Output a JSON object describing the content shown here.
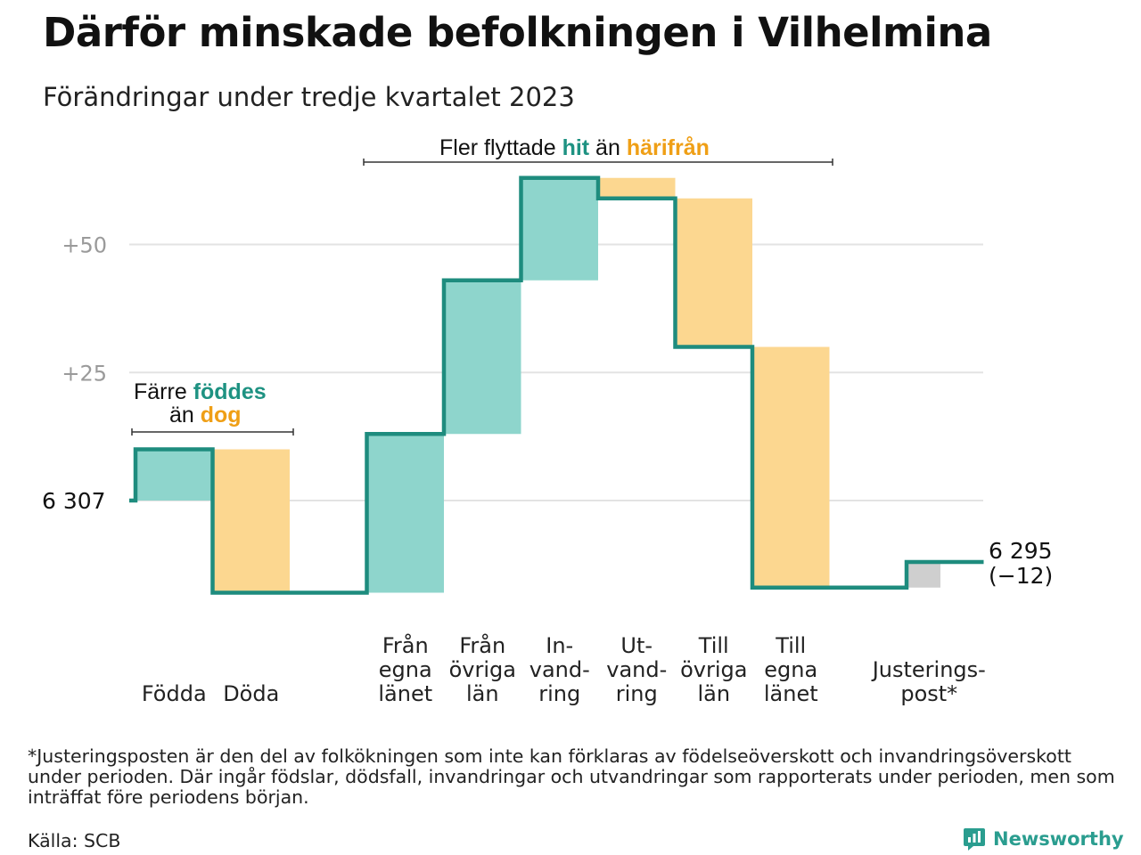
{
  "title": "Därför minskade befolkningen i Vilhelmina",
  "subtitle": "Förändringar under tredje kvartalet 2023",
  "chart_data": {
    "type": "waterfall",
    "start_value": 6307,
    "start_label": "6  307",
    "end_value": 6295,
    "end_label": "6 295",
    "end_change_label": "(−12)",
    "ytick_labels": [
      "+50",
      "+25"
    ],
    "ytick_values": [
      50,
      25
    ],
    "ylim": [
      -18,
      63
    ],
    "grid": true,
    "steps": [
      {
        "label": [
          "Födda"
        ],
        "value": 10,
        "type": "increase"
      },
      {
        "label": [
          "Döda"
        ],
        "value": -28,
        "type": "decrease"
      },
      {
        "label": [
          "Från",
          "egna",
          "länet"
        ],
        "value": 31,
        "type": "increase"
      },
      {
        "label": [
          "Från",
          "övriga",
          "län"
        ],
        "value": 30,
        "type": "increase"
      },
      {
        "label": [
          "In-",
          "vand-",
          "ring"
        ],
        "value": 20,
        "type": "increase"
      },
      {
        "label": [
          "Ut-",
          "vand-",
          "ring"
        ],
        "value": -4,
        "type": "decrease"
      },
      {
        "label": [
          "Till",
          "övriga",
          "län"
        ],
        "value": -29,
        "type": "decrease"
      },
      {
        "label": [
          "Till",
          "egna",
          "länet"
        ],
        "value": -47,
        "type": "decrease"
      },
      {
        "label": [
          "Justerings-",
          "post*"
        ],
        "value": 5,
        "type": "adjustment"
      }
    ],
    "annotations": {
      "group1": {
        "text1": "Färre ",
        "hl1": "föddes",
        "text2": "än ",
        "hl2": "dog"
      },
      "group2": {
        "text1": "Fler flyttade ",
        "hl1": "hit",
        "text2": " än ",
        "hl2": "härifrån"
      }
    },
    "colors": {
      "increase": "#8ed5cc",
      "decrease": "#fcd790",
      "adjustment": "#cfcfcf",
      "line": "#1e8c7e",
      "hit_text": "#1e9282",
      "away_text": "#ef9f16",
      "grid": "#e3e3e3",
      "tick_text": "#9a9a9a"
    }
  },
  "footnote": "*Justeringsposten är den del av folkökningen som inte kan förklaras av födelseöverskott och invandringsöverskott under perioden. Där ingår födslar, dödsfall, invandringar och utvandringar som rapporterats under perioden, men som inträffat före periodens början.",
  "source": "Källa: SCB",
  "brand": {
    "name": "Newsworthy",
    "icon": "newsworthy-logo-icon"
  }
}
